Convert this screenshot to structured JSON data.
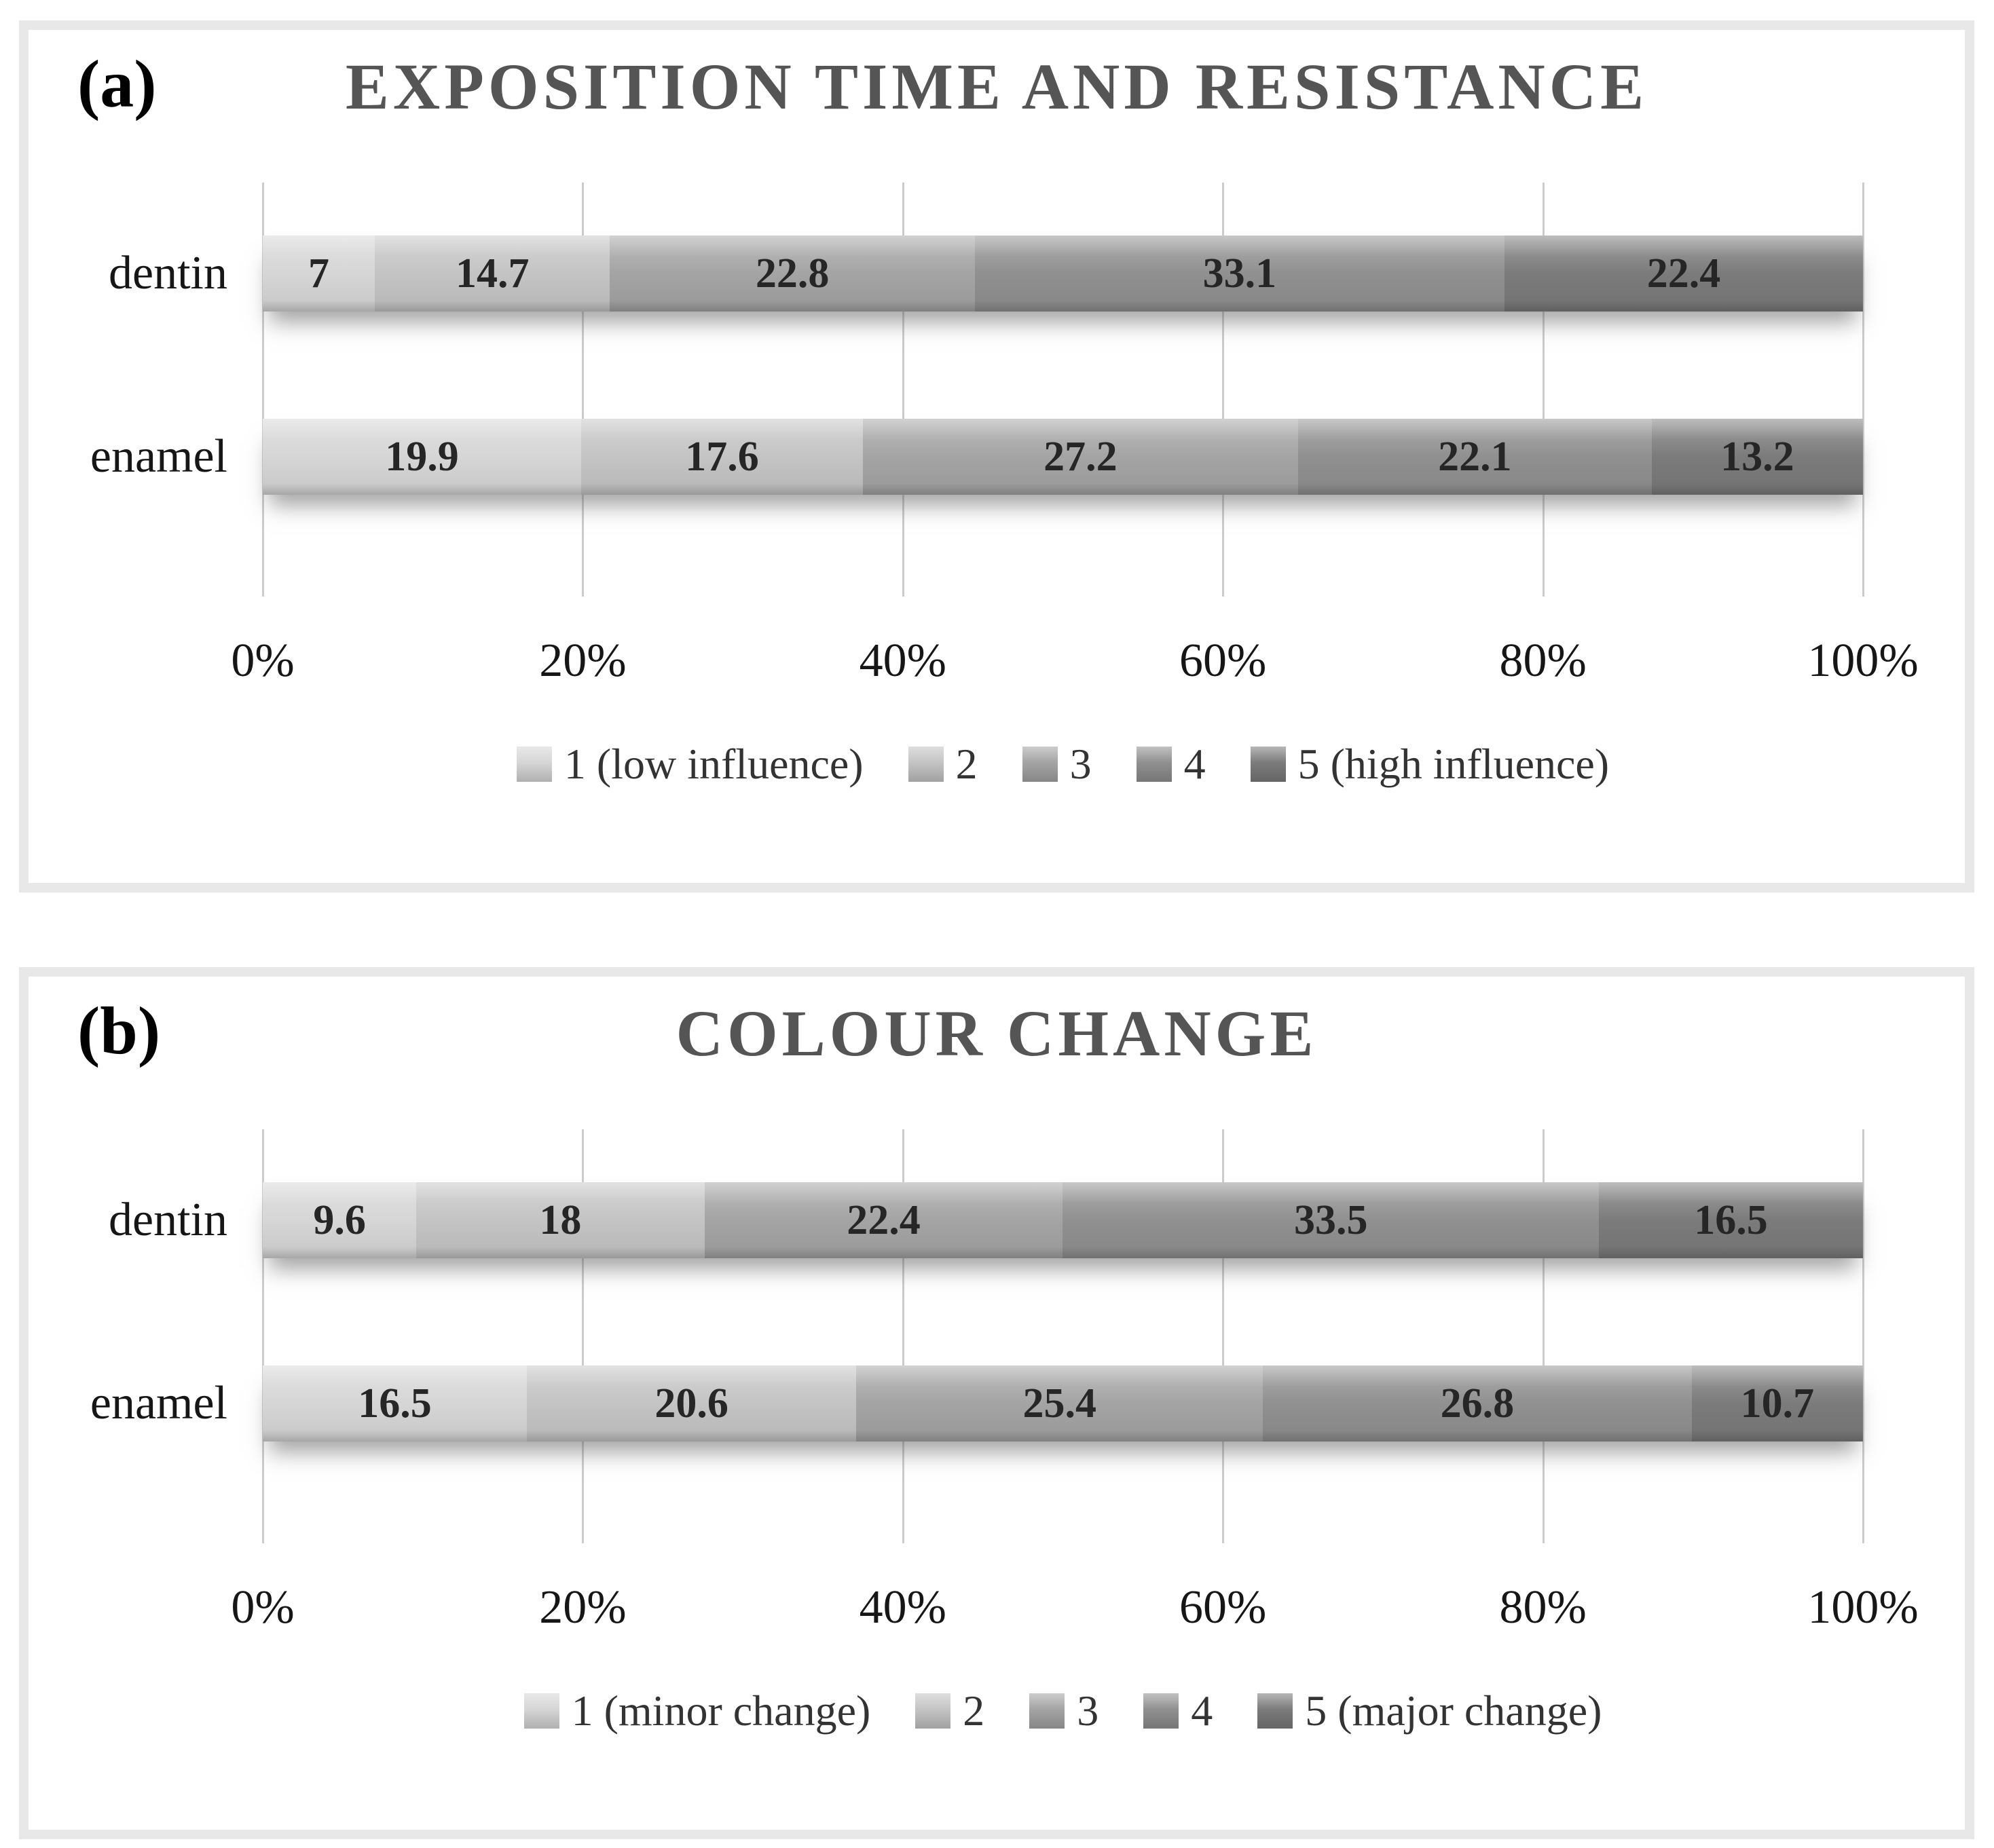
{
  "figure": {
    "background": "#ffffff",
    "panel_border_color": "#e8e8e8",
    "gridline_color": "#cccccc",
    "title_color": "#555555",
    "value_label_color": "#262626",
    "axis_label_color": "#161616",
    "legend_text_color": "#333333"
  },
  "series_colors": [
    "#d6d6d6",
    "#c4c4c4",
    "#a4a4a4",
    "#909090",
    "#7b7b7b"
  ],
  "chart_data": [
    {
      "type": "bar",
      "orientation": "horizontal-stacked-100",
      "panel_label": "(a)",
      "title": "EXPOSITION TIME AND RESISTANCE",
      "categories": [
        "dentin",
        "enamel"
      ],
      "series": [
        {
          "name": "1 (low influence)",
          "values": [
            7,
            19.9
          ]
        },
        {
          "name": "2",
          "values": [
            14.7,
            17.6
          ]
        },
        {
          "name": "3",
          "values": [
            22.8,
            27.2
          ]
        },
        {
          "name": "4",
          "values": [
            33.1,
            22.1
          ]
        },
        {
          "name": "5 (high influence)",
          "values": [
            22.4,
            13.2
          ]
        }
      ],
      "x_ticks": [
        "0%",
        "20%",
        "40%",
        "60%",
        "80%",
        "100%"
      ],
      "xlim": [
        0,
        100
      ],
      "grid": true,
      "legend_position": "bottom"
    },
    {
      "type": "bar",
      "orientation": "horizontal-stacked-100",
      "panel_label": "(b)",
      "title": "COLOUR CHANGE",
      "categories": [
        "dentin",
        "enamel"
      ],
      "series": [
        {
          "name": "1 (minor change)",
          "values": [
            9.6,
            16.5
          ]
        },
        {
          "name": "2",
          "values": [
            18,
            20.6
          ]
        },
        {
          "name": "3",
          "values": [
            22.4,
            25.4
          ]
        },
        {
          "name": "4",
          "values": [
            33.5,
            26.8
          ]
        },
        {
          "name": "5 (major change)",
          "values": [
            16.5,
            10.7
          ]
        }
      ],
      "x_ticks": [
        "0%",
        "20%",
        "40%",
        "60%",
        "80%",
        "100%"
      ],
      "xlim": [
        0,
        100
      ],
      "grid": true,
      "legend_position": "bottom"
    }
  ]
}
